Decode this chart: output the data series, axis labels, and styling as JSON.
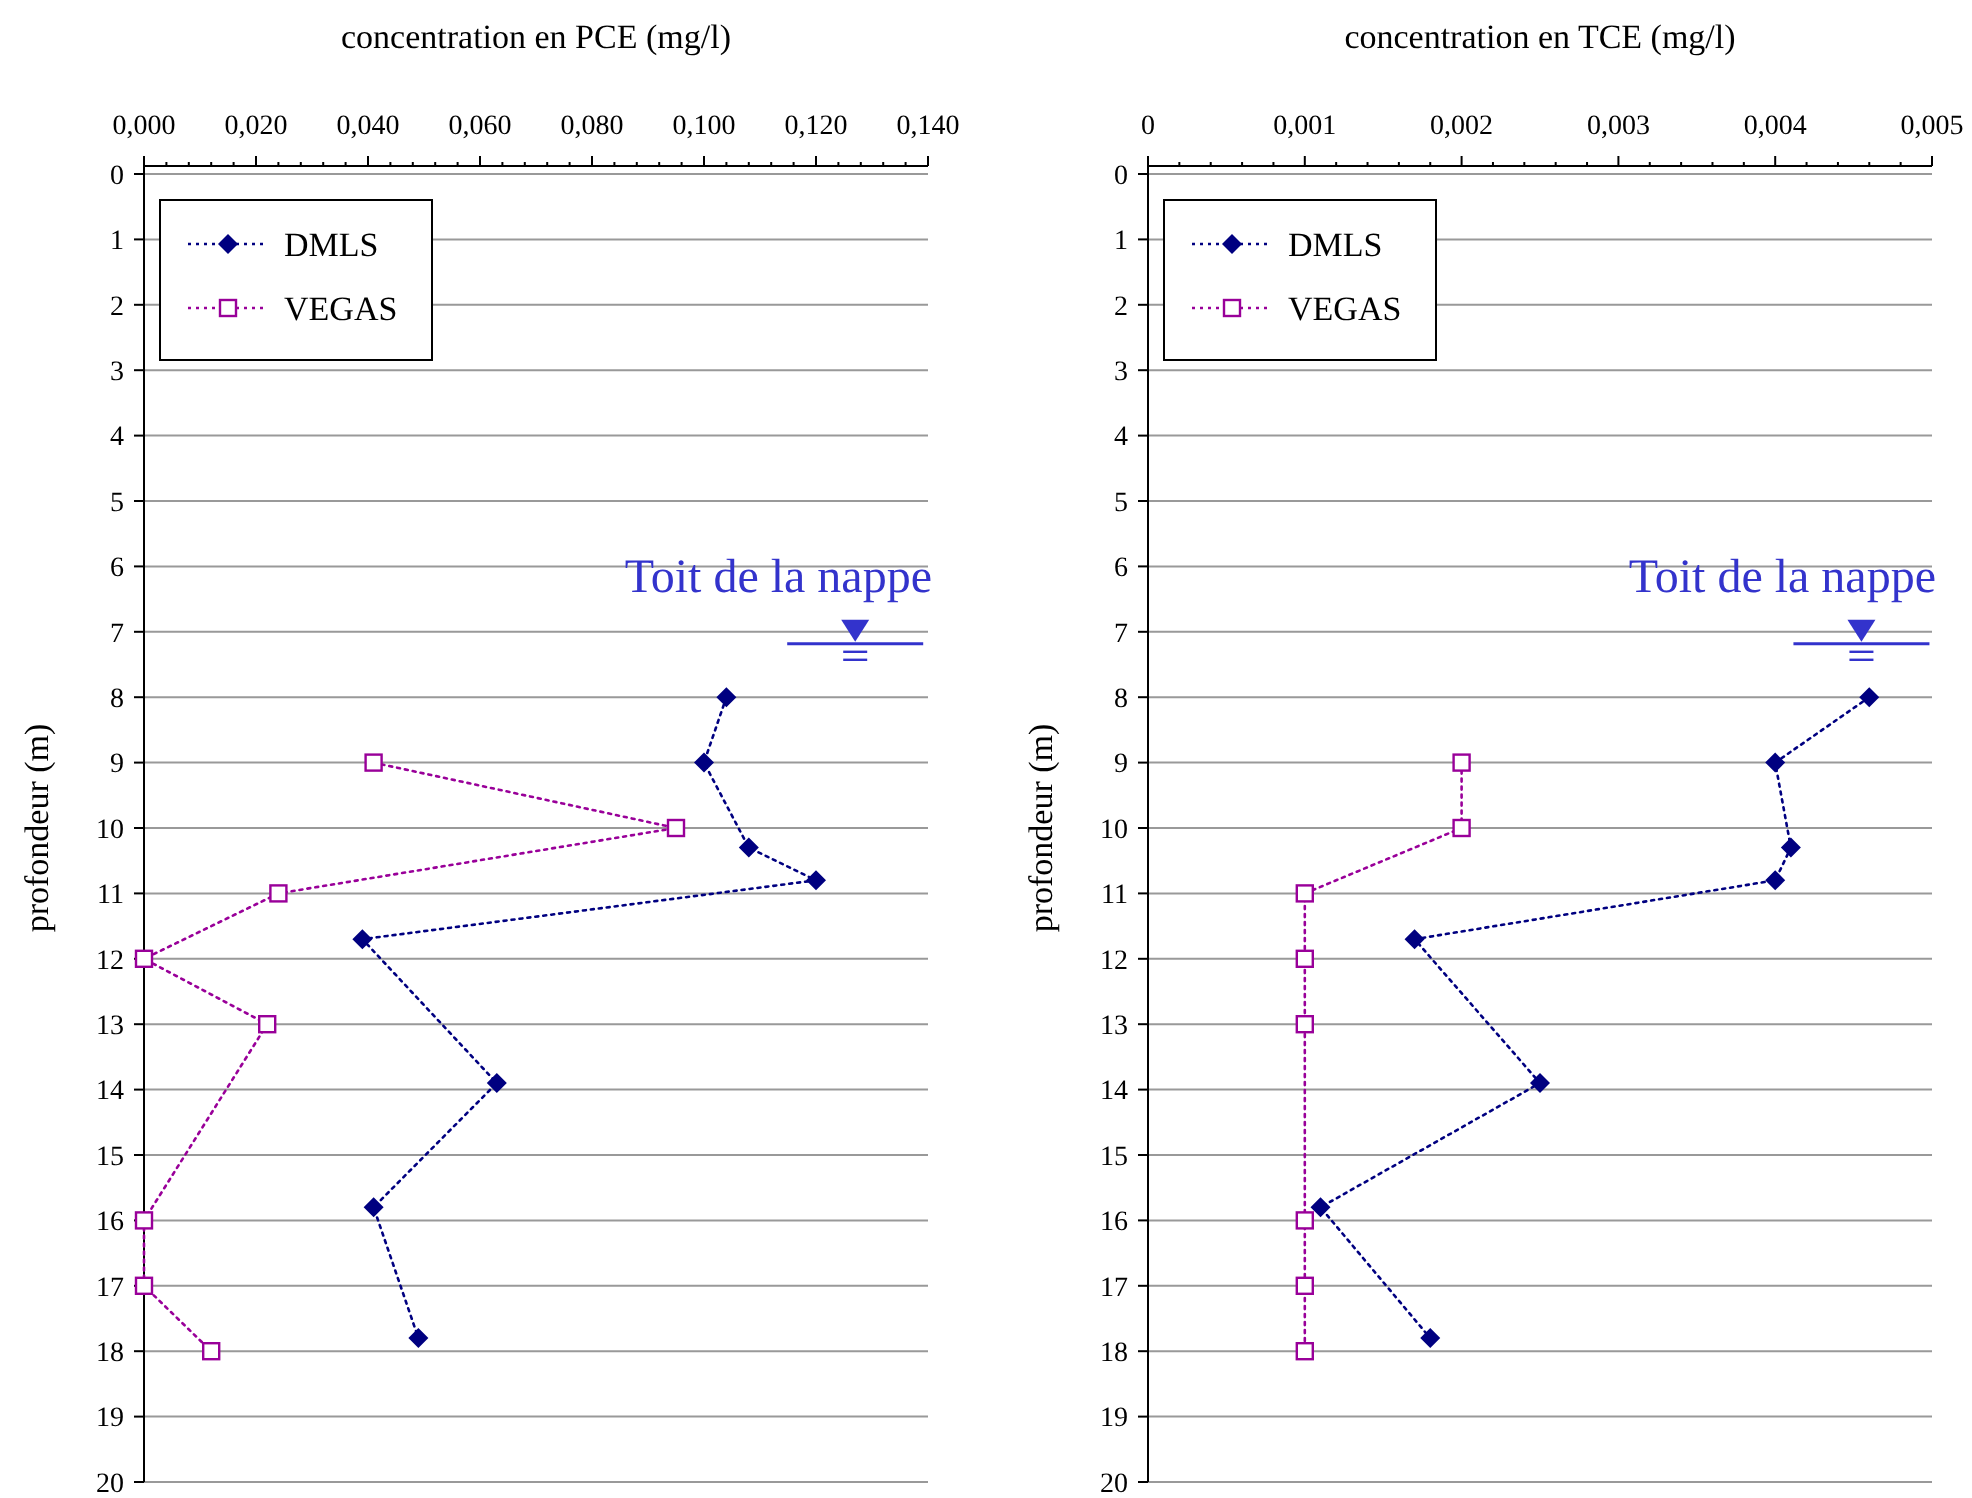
{
  "chart_data": [
    {
      "type": "line",
      "xlabel": "concentration en PCE (mg/l)",
      "ylabel": "profondeur (m)",
      "xlim": [
        0,
        0.14
      ],
      "xticks": [
        {
          "value": 0,
          "label": "0,000"
        },
        {
          "value": 0.02,
          "label": "0,020"
        },
        {
          "value": 0.04,
          "label": "0,040"
        },
        {
          "value": 0.06,
          "label": "0,060"
        },
        {
          "value": 0.08,
          "label": "0,080"
        },
        {
          "value": 0.1,
          "label": "0,100"
        },
        {
          "value": 0.12,
          "label": "0,120"
        },
        {
          "value": 0.14,
          "label": "0,140"
        }
      ],
      "ylim": [
        20,
        0
      ],
      "yticks": [
        0,
        1,
        2,
        3,
        4,
        5,
        6,
        7,
        8,
        9,
        10,
        11,
        12,
        13,
        14,
        15,
        16,
        17,
        18,
        19,
        20
      ],
      "grid": "y",
      "legend": "top left",
      "line_style": "dotted",
      "series": [
        {
          "name": "DMLS",
          "color": "#000080",
          "marker": "diamond",
          "x": [
            0.104,
            0.1,
            0.108,
            0.12,
            0.039,
            0.063,
            0.041,
            0.049
          ],
          "values": [
            8,
            9,
            10.3,
            10.8,
            11.7,
            13.9,
            15.8,
            17.8
          ]
        },
        {
          "name": "VEGAS",
          "color": "#990099",
          "marker": "square",
          "x": [
            0.041,
            0.095,
            0.024,
            0,
            0.022,
            0,
            0,
            0.012
          ],
          "values": [
            9,
            10,
            11,
            12,
            13,
            16,
            17,
            18
          ]
        }
      ],
      "annotations": [
        {
          "text": "Toit de la nappe",
          "x": 0.127,
          "y": 7
        }
      ]
    },
    {
      "type": "line",
      "xlabel": "concentration en TCE (mg/l)",
      "ylabel": "profondeur (m)",
      "xlim": [
        0,
        0.005
      ],
      "xticks": [
        0,
        {
          "value": 0.001,
          "label": "0,001"
        },
        {
          "value": 0.002,
          "label": "0,002"
        },
        {
          "value": 0.003,
          "label": "0,003"
        },
        {
          "value": 0.004,
          "label": "0,004"
        },
        {
          "value": 0.005,
          "label": "0,005"
        }
      ],
      "ylim": [
        20,
        0
      ],
      "yticks": [
        0,
        1,
        2,
        3,
        4,
        5,
        6,
        7,
        8,
        9,
        10,
        11,
        12,
        13,
        14,
        15,
        16,
        17,
        18,
        19,
        20
      ],
      "grid": "y",
      "legend": "top left",
      "line_style": "dotted",
      "series": [
        {
          "name": "DMLS",
          "color": "#000080",
          "marker": "diamond",
          "x": [
            0.0046,
            0.004,
            0.0041,
            0.004,
            0.0017,
            0.0025,
            0.0011,
            0.0018
          ],
          "values": [
            8,
            9,
            10.3,
            10.8,
            11.7,
            13.9,
            15.8,
            17.8
          ]
        },
        {
          "name": "VEGAS",
          "color": "#990099",
          "marker": "square",
          "x": [
            0.002,
            0.002,
            0.001,
            0.001,
            0.001,
            0.001,
            0.001,
            0.001
          ],
          "values": [
            9,
            10,
            11,
            12,
            13,
            16,
            17,
            18
          ]
        }
      ],
      "annotations": [
        {
          "text": "Toit de la nappe",
          "x": 0.00455,
          "y": 7
        }
      ]
    }
  ]
}
